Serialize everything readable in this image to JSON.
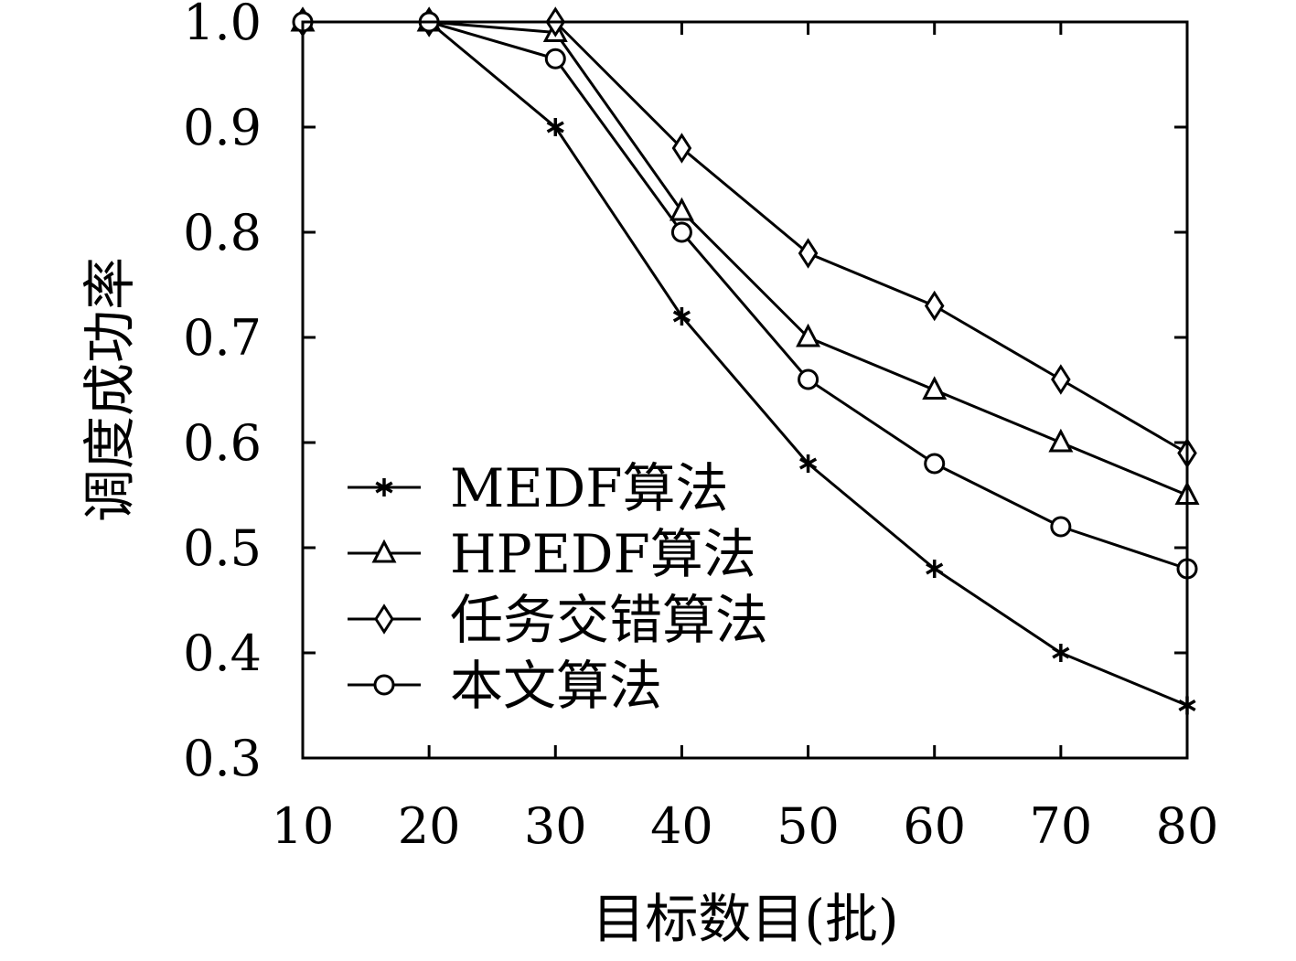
{
  "chart_data": {
    "type": "line",
    "title": "",
    "xlabel": "目标数目(批)",
    "ylabel": "调度成功率",
    "x": [
      10,
      20,
      30,
      40,
      50,
      60,
      70,
      80
    ],
    "xlim": [
      10,
      80
    ],
    "ylim": [
      0.3,
      1.0
    ],
    "x_ticks": [
      "10",
      "20",
      "30",
      "40",
      "50",
      "60",
      "70",
      "80"
    ],
    "y_ticks": [
      "1.0",
      "0.9",
      "0.8",
      "0.7",
      "0.6",
      "0.5",
      "0.4",
      "0.3"
    ],
    "y_tick_values": [
      1.0,
      0.9,
      0.8,
      0.7,
      0.6,
      0.5,
      0.4,
      0.3
    ],
    "grid": false,
    "legend_position": "lower-left",
    "line_color": "#000000",
    "series": [
      {
        "name": "MEDF算法",
        "marker": "asterisk",
        "values": [
          1.0,
          1.0,
          0.9,
          0.72,
          0.58,
          0.48,
          0.4,
          0.35
        ]
      },
      {
        "name": "HPEDF算法",
        "marker": "triangle",
        "values": [
          1.0,
          1.0,
          0.99,
          0.82,
          0.7,
          0.65,
          0.6,
          0.55
        ]
      },
      {
        "name": "任务交错算法",
        "marker": "diamond",
        "values": [
          1.0,
          1.0,
          1.0,
          0.88,
          0.78,
          0.73,
          0.66,
          0.59
        ]
      },
      {
        "name": "本文算法",
        "marker": "circle",
        "values": [
          1.0,
          1.0,
          0.965,
          0.8,
          0.66,
          0.58,
          0.52,
          0.48
        ]
      }
    ]
  }
}
